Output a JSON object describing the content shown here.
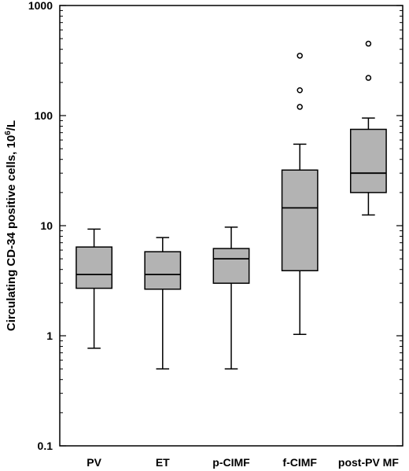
{
  "chart_data": {
    "type": "box",
    "ylabel": "Circulating CD-34 positive cells, 10",
    "ylabel_sup": "6",
    "ylabel_unit": "/L",
    "yscale": "log",
    "ylim": [
      0.1,
      1000
    ],
    "yticks": [
      0.1,
      1,
      10,
      100,
      1000
    ],
    "ytick_labels": [
      "0.1",
      "1",
      "10",
      "100",
      "1000"
    ],
    "grid": false,
    "legend": "none",
    "box_fill": "#b3b3b3",
    "categories": [
      "PV",
      "ET",
      "p-CIMF",
      "f-CIMF",
      "post-PV MF"
    ],
    "boxes": [
      {
        "category": "PV",
        "min": 0.77,
        "q1": 2.7,
        "median": 3.6,
        "q3": 6.4,
        "max": 9.3,
        "outliers": []
      },
      {
        "category": "ET",
        "min": 0.5,
        "q1": 2.65,
        "median": 3.6,
        "q3": 5.8,
        "max": 7.8,
        "outliers": []
      },
      {
        "category": "p-CIMF",
        "min": 0.5,
        "q1": 3.0,
        "median": 5.0,
        "q3": 6.2,
        "max": 9.7,
        "outliers": []
      },
      {
        "category": "f-CIMF",
        "min": 1.03,
        "q1": 3.9,
        "median": 14.5,
        "q3": 32,
        "max": 55,
        "outliers": [
          120,
          170,
          350
        ]
      },
      {
        "category": "post-PV MF",
        "min": 12.5,
        "q1": 20,
        "median": 30,
        "q3": 75,
        "max": 95,
        "outliers": [
          220,
          450
        ]
      }
    ]
  }
}
